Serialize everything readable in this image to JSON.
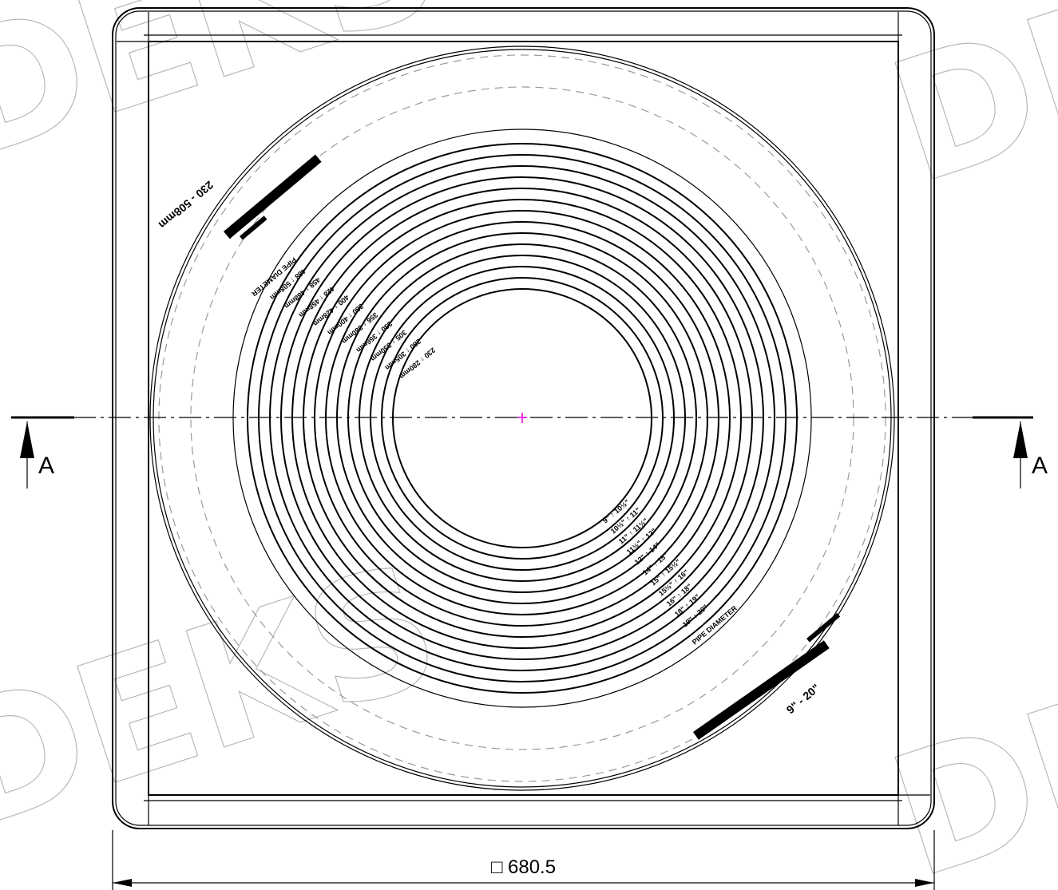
{
  "watermark": "DEKS",
  "section_label": "A",
  "dimension": {
    "symbol": "□",
    "value": "680.5"
  },
  "metric": {
    "range": "230 - 508mm",
    "title": "PIPE DIAMETER",
    "rings": [
      "488 ↑ 508mm",
      "458 ↑ 488mm",
      "428 ↑ 458mm",
      "400 ↑ 428mm",
      "380 ↑ 400mm",
      "356 ↑ 380mm",
      "330 ↑ 356mm",
      "305 ↑ 330mm",
      "280 ↑ 305mm",
      "230 ↑ 280mm"
    ]
  },
  "imperial": {
    "range": "9\" - 20\"",
    "title": "PIPE DIAMETER",
    "rings": [
      "9\" ↑ 10½\"",
      "10½\" ↑ 11\"",
      "11\" ↑ 11½\"",
      "11½\" ↑ 12\"",
      "12\" ↑ 14\"",
      "14\" ↑ 15\"",
      "15\" ↑ 15½\"",
      "15½\" ↑ 16\"",
      "16\" ↑ 18\"",
      "18\" ↑ 19\"",
      "19\" ↑ 20\""
    ]
  }
}
